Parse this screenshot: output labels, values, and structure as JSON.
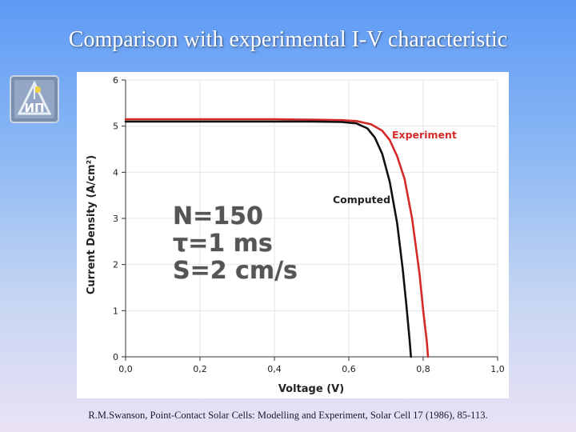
{
  "slide": {
    "title": "Comparison with experimental I-V characteristic",
    "citation": "R.M.Swanson, Point-Contact Solar Cells: Modelling and Experiment, Solar Cell 17 (1986), 85-113."
  },
  "logo": {
    "icon": "institute-logo-icon",
    "text": "ИП"
  },
  "colors": {
    "experiment": "#d42a2a",
    "computed": "#111111",
    "grid": "#e6e6e6"
  },
  "chart_data": {
    "type": "line",
    "xlabel": "Voltage (V)",
    "ylabel": "Current Density (A/cm²)",
    "xlim": [
      0,
      1.0
    ],
    "ylim": [
      0,
      6
    ],
    "x_ticks": [
      "0,0",
      "0,2",
      "0,4",
      "0,6",
      "0,8",
      "1,0"
    ],
    "y_ticks": [
      "0",
      "1",
      "2",
      "3",
      "4",
      "5",
      "6"
    ],
    "grid": true,
    "series": [
      {
        "name": "Experiment",
        "color": "#d42a2a",
        "points": [
          [
            0,
            5.15
          ],
          [
            0.2,
            5.15
          ],
          [
            0.4,
            5.15
          ],
          [
            0.5,
            5.14
          ],
          [
            0.58,
            5.13
          ],
          [
            0.62,
            5.11
          ],
          [
            0.66,
            5.04
          ],
          [
            0.69,
            4.9
          ],
          [
            0.71,
            4.7
          ],
          [
            0.73,
            4.35
          ],
          [
            0.75,
            3.85
          ],
          [
            0.77,
            3.0
          ],
          [
            0.79,
            1.8
          ],
          [
            0.8,
            1.0
          ],
          [
            0.81,
            0.3
          ],
          [
            0.813,
            0
          ]
        ]
      },
      {
        "name": "Computed",
        "color": "#111111",
        "points": [
          [
            0,
            5.1
          ],
          [
            0.2,
            5.1
          ],
          [
            0.4,
            5.1
          ],
          [
            0.5,
            5.1
          ],
          [
            0.58,
            5.09
          ],
          [
            0.62,
            5.06
          ],
          [
            0.65,
            4.95
          ],
          [
            0.67,
            4.75
          ],
          [
            0.69,
            4.4
          ],
          [
            0.71,
            3.8
          ],
          [
            0.73,
            2.9
          ],
          [
            0.745,
            1.9
          ],
          [
            0.755,
            1.1
          ],
          [
            0.763,
            0.4
          ],
          [
            0.767,
            0
          ]
        ]
      }
    ],
    "annotations": {
      "line1": "N=150",
      "line2": "τ=1 ms",
      "line3": "S=2 cm/s"
    }
  }
}
